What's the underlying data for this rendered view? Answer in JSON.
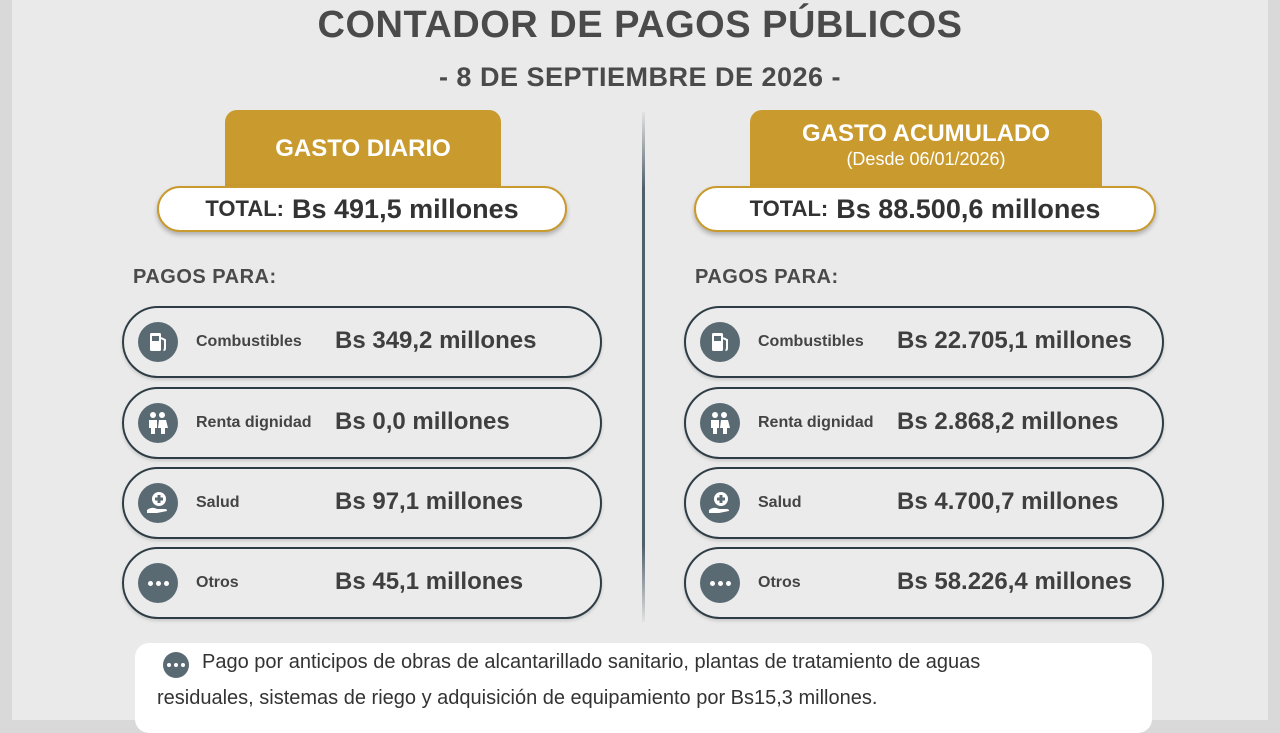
{
  "header": {
    "title": "CONTADOR DE PAGOS PÚBLICOS",
    "date": "- 8 DE SEPTIEMBRE DE 2026 -"
  },
  "diario": {
    "tab_label": "GASTO DIARIO",
    "total_label": "TOTAL:",
    "total_value": "Bs 491,5 millones",
    "pagos_label": "PAGOS PARA:",
    "items": [
      {
        "name": "Combustibles",
        "amount": "Bs 349,2 millones",
        "icon": "fuel-pump-icon"
      },
      {
        "name": "Renta dignidad",
        "amount": "Bs 0,0 millones",
        "icon": "elderly-couple-icon"
      },
      {
        "name": "Salud",
        "amount": "Bs 97,1 millones",
        "icon": "health-hand-icon"
      },
      {
        "name": "Otros",
        "amount": "Bs 45,1 millones",
        "icon": "more-dots-icon"
      }
    ]
  },
  "acumulado": {
    "tab_label": "GASTO ACUMULADO",
    "tab_sub": "(Desde 06/01/2026)",
    "total_label": "TOTAL:",
    "total_value": "Bs 88.500,6 millones",
    "pagos_label": "PAGOS PARA:",
    "items": [
      {
        "name": "Combustibles",
        "amount": "Bs 22.705,1 millones",
        "icon": "fuel-pump-icon"
      },
      {
        "name": "Renta dignidad",
        "amount": "Bs 2.868,2 millones",
        "icon": "elderly-couple-icon"
      },
      {
        "name": "Salud",
        "amount": "Bs 4.700,7 millones",
        "icon": "health-hand-icon"
      },
      {
        "name": "Otros",
        "amount": "Bs 58.226,4 millones",
        "icon": "more-dots-icon"
      }
    ]
  },
  "note": {
    "line1": "Pago por anticipos de obras de alcantarillado sanitario, plantas de tratamiento de aguas",
    "line2": "residuales, sistemas de riego y adquisición de equipamiento por Bs15,3 millones."
  },
  "colors": {
    "accent_gold": "#c99a2e",
    "icon_slate": "#5a6a73",
    "row_border": "#2e3d45",
    "text_dark": "#4a4a4a"
  }
}
